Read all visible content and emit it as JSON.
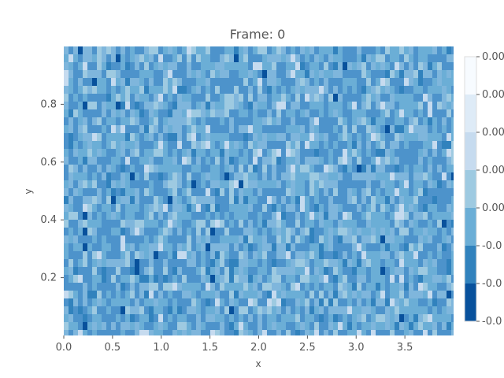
{
  "chart_data": {
    "type": "heatmap",
    "title": "Frame: 0",
    "xlabel": "x",
    "ylabel": "y",
    "xlim": [
      0.0,
      4.0
    ],
    "ylim": [
      0.0,
      1.0
    ],
    "x_ticks": [
      "0.0",
      "0.5",
      "1.0",
      "1.5",
      "2.0",
      "2.5",
      "3.0",
      "3.5"
    ],
    "y_ticks": [
      "0.2",
      "0.4",
      "0.6",
      "0.8"
    ],
    "colorbar_labels": [
      "-0.0",
      "-0.0",
      "-0.0",
      "0.00",
      "0.00",
      "0.00",
      "0.00",
      "0.00"
    ],
    "colorbar_colors": [
      "#08519c",
      "#3182bd",
      "#6baed6",
      "#9ecae1",
      "#c6dbef",
      "#deebf7",
      "#f7fbff"
    ],
    "field_colors": [
      "#4d93cb",
      "#6baed6",
      "#7fb6dc",
      "#9ecae1",
      "#c6dbef",
      "#3182bd",
      "#08519c"
    ],
    "grid": false,
    "legend": "colorbar-right"
  }
}
